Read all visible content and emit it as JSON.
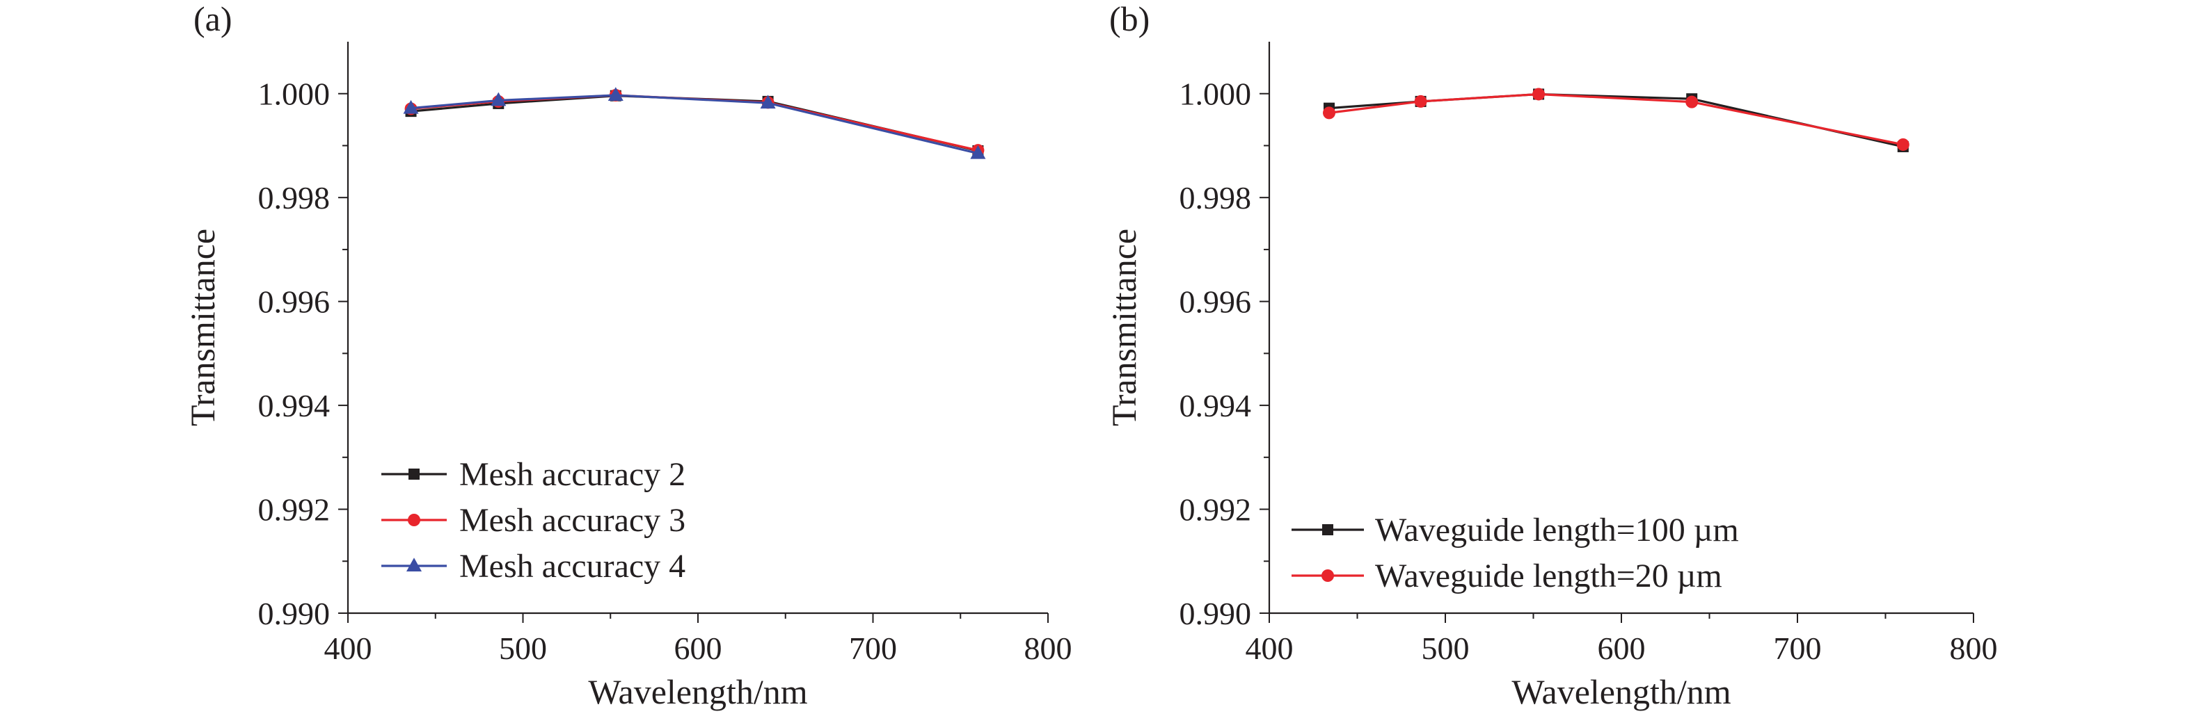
{
  "chart_data": [
    {
      "panel_label": "(a)",
      "type": "line",
      "xlabel": "Wavelength/nm",
      "ylabel": "Transmittance",
      "xlim": [
        400,
        800
      ],
      "ylim": [
        0.99,
        1.001
      ],
      "xticks": [
        400,
        500,
        600,
        700,
        800
      ],
      "xtick_labels": [
        "400",
        "500",
        "600",
        "700",
        "800"
      ],
      "yticks": [
        0.99,
        0.992,
        0.994,
        0.996,
        0.998,
        1.0
      ],
      "ytick_labels": [
        "0.990",
        "0.992",
        "0.994",
        "0.996",
        "0.998",
        "1.000"
      ],
      "grid": false,
      "legend_position": "bottom-left",
      "x": [
        436,
        486,
        553,
        640,
        760
      ],
      "series": [
        {
          "name": "Mesh accuracy 2",
          "color": "#231f20",
          "marker": "square",
          "values": [
            0.99966,
            0.99981,
            0.99996,
            0.99985,
            0.9989
          ]
        },
        {
          "name": "Mesh accuracy 3",
          "color": "#e8252c",
          "marker": "circle",
          "values": [
            0.99971,
            0.99985,
            0.99997,
            0.99983,
            0.99891
          ]
        },
        {
          "name": "Mesh accuracy 4",
          "color": "#3a4da4",
          "marker": "triangle",
          "values": [
            0.99972,
            0.99987,
            0.99997,
            0.99982,
            0.99885
          ]
        }
      ]
    },
    {
      "panel_label": "(b)",
      "type": "line",
      "xlabel": "Wavelength/nm",
      "ylabel": "Transmittance",
      "xlim": [
        400,
        800
      ],
      "ylim": [
        0.99,
        1.001
      ],
      "xticks": [
        400,
        500,
        600,
        700,
        800
      ],
      "xtick_labels": [
        "400",
        "500",
        "600",
        "700",
        "800"
      ],
      "yticks": [
        0.99,
        0.992,
        0.994,
        0.996,
        0.998,
        1.0
      ],
      "ytick_labels": [
        "0.990",
        "0.992",
        "0.994",
        "0.996",
        "0.998",
        "1.000"
      ],
      "grid": false,
      "legend_position": "bottom-left",
      "x": [
        434,
        486,
        553,
        640,
        760
      ],
      "series": [
        {
          "name": "Waveguide length=100 µm",
          "color": "#231f20",
          "marker": "square",
          "values": [
            0.99972,
            0.99985,
            0.99999,
            0.9999,
            0.99898
          ]
        },
        {
          "name": "Waveguide length=20 µm",
          "color": "#e8252c",
          "marker": "circle",
          "values": [
            0.99963,
            0.99985,
            0.99999,
            0.99984,
            0.99902
          ]
        }
      ]
    }
  ]
}
